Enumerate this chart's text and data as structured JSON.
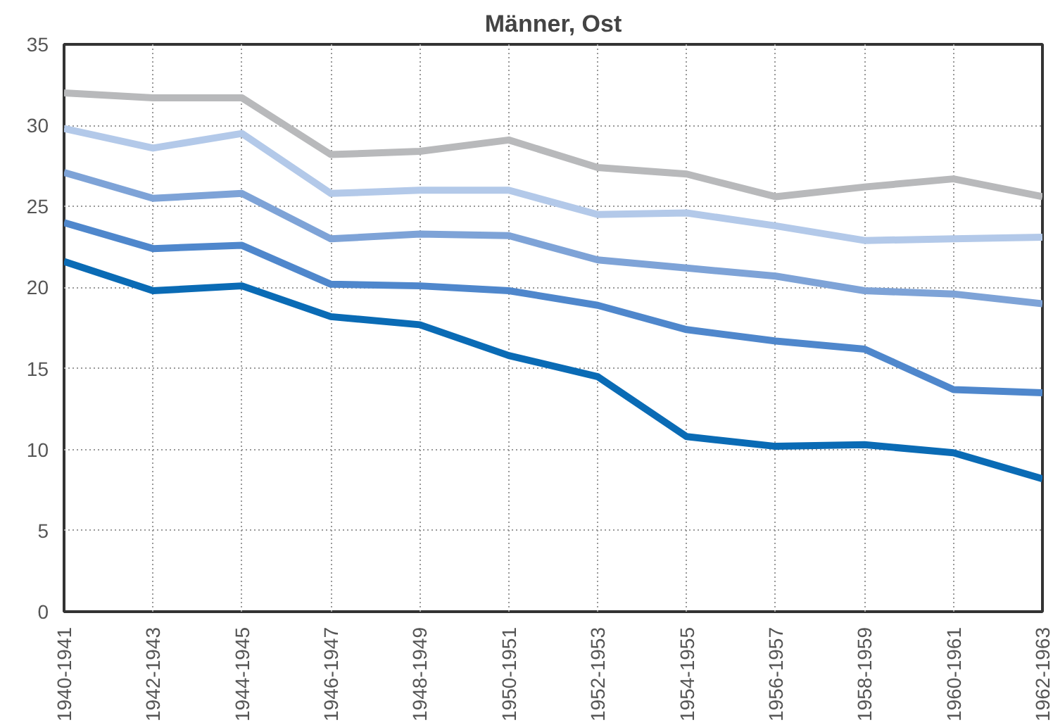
{
  "chart_data": {
    "type": "line",
    "title": "Männer, Ost",
    "categories": [
      "1940-1941",
      "1942-1943",
      "1944-1945",
      "1946-1947",
      "1948-1949",
      "1950-1951",
      "1952-1953",
      "1954-1955",
      "1956-1957",
      "1958-1959",
      "1960-1961",
      "1962-1963"
    ],
    "series": [
      {
        "color": "#b8b9bb",
        "values": [
          32.0,
          31.7,
          31.7,
          28.2,
          28.4,
          29.1,
          27.4,
          27.0,
          25.6,
          26.2,
          26.7,
          25.6
        ]
      },
      {
        "color": "#b3c9e9",
        "values": [
          29.8,
          28.6,
          29.5,
          25.8,
          26.0,
          26.0,
          24.5,
          24.6,
          23.8,
          22.9,
          23.0,
          23.1
        ]
      },
      {
        "color": "#7ea3d7",
        "values": [
          27.1,
          25.5,
          25.8,
          23.0,
          23.3,
          23.2,
          21.7,
          21.2,
          20.7,
          19.8,
          19.6,
          19.0
        ]
      },
      {
        "color": "#4f87cc",
        "values": [
          24.0,
          22.4,
          22.6,
          20.2,
          20.1,
          19.8,
          18.9,
          17.4,
          16.7,
          16.2,
          13.7,
          13.5
        ]
      },
      {
        "color": "#0a6bb5",
        "values": [
          21.6,
          19.8,
          20.1,
          18.2,
          17.7,
          15.8,
          14.5,
          10.8,
          10.2,
          10.3,
          9.8,
          8.2
        ]
      }
    ],
    "ylim": [
      0,
      35
    ],
    "yticks": [
      0,
      5,
      10,
      15,
      20,
      25,
      30,
      35
    ],
    "grid": true,
    "marker": "none",
    "line_style": "solid"
  }
}
